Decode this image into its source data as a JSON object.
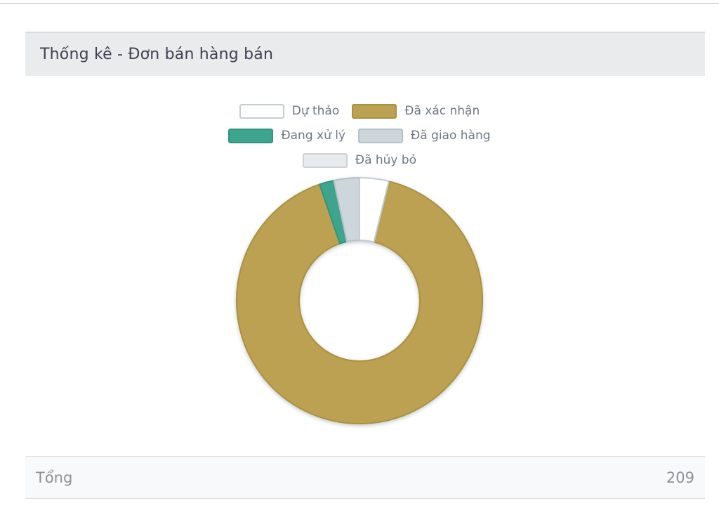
{
  "card": {
    "title": "Thống kê - Đơn bán hàng bán"
  },
  "footer": {
    "total_label": "Tổng",
    "total_value": "209"
  },
  "chart_data": {
    "type": "pie",
    "donut": true,
    "title": "Thống kê - Đơn bán hàng bán",
    "legend_position": "top",
    "start_angle_deg": 0,
    "direction": "clockwise",
    "inner_radius_ratio": 0.49,
    "total": 209,
    "slices": [
      {
        "label": "Dự thảo",
        "value": 8,
        "percent": 3.8,
        "color": "#ffffff",
        "border": "#c4ccd3"
      },
      {
        "label": "Đã xác nhận",
        "value": 190,
        "percent": 90.9,
        "color": "#bba151",
        "border": "#aa923f"
      },
      {
        "label": "Đang xử lý",
        "value": 4,
        "percent": 1.9,
        "color": "#3fa48e",
        "border": "#2f967e"
      },
      {
        "label": "Đã giao hàng",
        "value": 7,
        "percent": 3.3,
        "color": "#cdd6db",
        "border": "#b6c1c8"
      },
      {
        "label": "Đã hủy bỏ",
        "value": 0,
        "percent": 0.0,
        "color": "#e7ebee",
        "border": "#ccd3d8"
      }
    ],
    "legend_rows": [
      [
        0,
        1
      ],
      [
        2,
        3
      ],
      [
        4
      ]
    ]
  }
}
